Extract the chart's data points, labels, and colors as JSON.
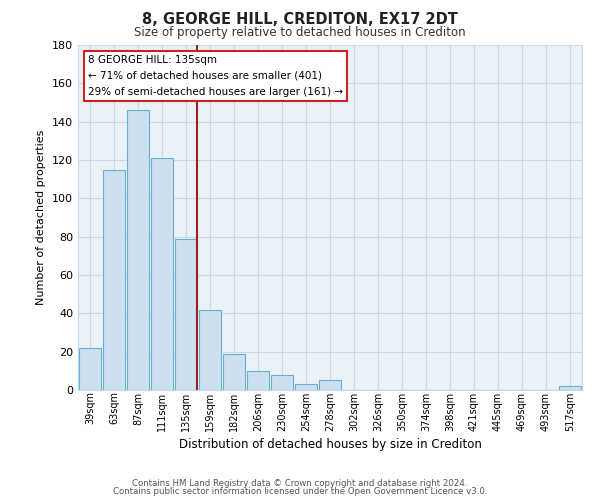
{
  "title": "8, GEORGE HILL, CREDITON, EX17 2DT",
  "subtitle": "Size of property relative to detached houses in Crediton",
  "xlabel": "Distribution of detached houses by size in Crediton",
  "ylabel": "Number of detached properties",
  "bar_labels": [
    "39sqm",
    "63sqm",
    "87sqm",
    "111sqm",
    "135sqm",
    "159sqm",
    "182sqm",
    "206sqm",
    "230sqm",
    "254sqm",
    "278sqm",
    "302sqm",
    "326sqm",
    "350sqm",
    "374sqm",
    "398sqm",
    "421sqm",
    "445sqm",
    "469sqm",
    "493sqm",
    "517sqm"
  ],
  "bar_values": [
    22,
    115,
    146,
    121,
    79,
    42,
    19,
    10,
    8,
    3,
    5,
    0,
    0,
    0,
    0,
    0,
    0,
    0,
    0,
    0,
    2
  ],
  "bar_color": "#cce0f0",
  "bar_edge_color": "#6aadd5",
  "highlight_index": 4,
  "highlight_edge_color": "#a02020",
  "ylim": [
    0,
    180
  ],
  "yticks": [
    0,
    20,
    40,
    60,
    80,
    100,
    120,
    140,
    160,
    180
  ],
  "annotation_title": "8 GEORGE HILL: 135sqm",
  "annotation_line1": "← 71% of detached houses are smaller (401)",
  "annotation_line2": "29% of semi-detached houses are larger (161) →",
  "footer_line1": "Contains HM Land Registry data © Crown copyright and database right 2024.",
  "footer_line2": "Contains public sector information licensed under the Open Government Licence v3.0.",
  "background_color": "#ffffff",
  "grid_color": "#c8d8e8",
  "plot_bg_color": "#eaf2f8"
}
